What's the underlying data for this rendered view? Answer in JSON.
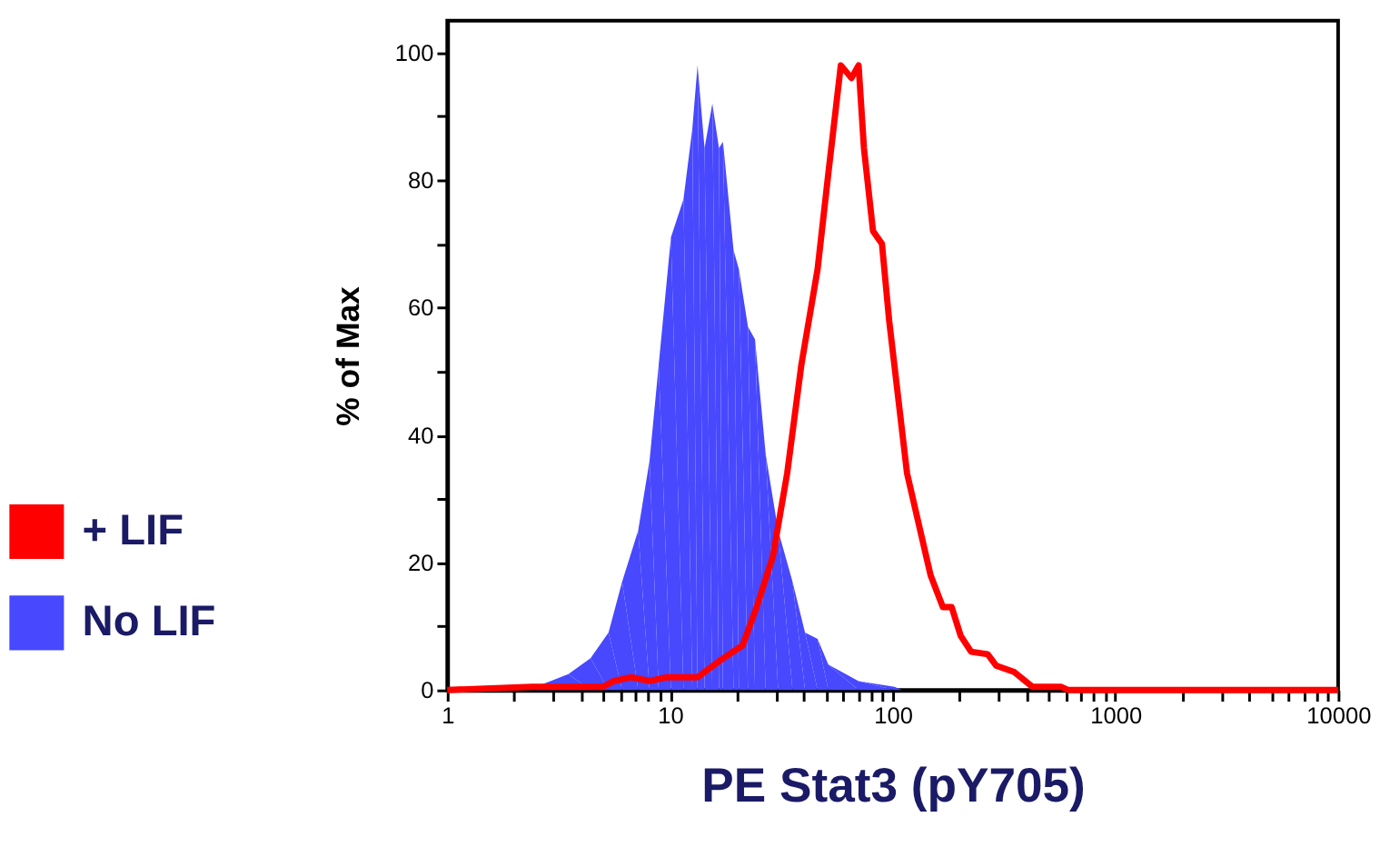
{
  "chart_data": {
    "type": "area",
    "xlabel": "PE Stat3 (pY705)",
    "ylabel": "% of Max",
    "log": "x",
    "xlim": [
      1,
      10000
    ],
    "ylim": [
      0,
      105
    ],
    "xticks": [
      1,
      {
        "value": 2,
        "label": null
      },
      {
        "value": 3,
        "label": null
      },
      {
        "value": 4,
        "label": null
      },
      {
        "value": 5,
        "label": null
      },
      {
        "value": 6,
        "label": null
      },
      {
        "value": 7,
        "label": null
      },
      {
        "value": 8,
        "label": null
      },
      {
        "value": 9,
        "label": null
      },
      10,
      {
        "value": 20,
        "label": null
      },
      {
        "value": 30,
        "label": null
      },
      {
        "value": 40,
        "label": null
      },
      {
        "value": 50,
        "label": null
      },
      {
        "value": 60,
        "label": null
      },
      {
        "value": 70,
        "label": null
      },
      {
        "value": 80,
        "label": null
      },
      {
        "value": 90,
        "label": null
      },
      100,
      {
        "value": 200,
        "label": null
      },
      {
        "value": 300,
        "label": null
      },
      {
        "value": 400,
        "label": null
      },
      {
        "value": 500,
        "label": null
      },
      {
        "value": 600,
        "label": null
      },
      {
        "value": 700,
        "label": null
      },
      {
        "value": 800,
        "label": null
      },
      {
        "value": 900,
        "label": null
      },
      1000,
      {
        "value": 2000,
        "label": null
      },
      {
        "value": 3000,
        "label": null
      },
      {
        "value": 4000,
        "label": null
      },
      {
        "value": 5000,
        "label": null
      },
      {
        "value": 6000,
        "label": null
      },
      {
        "value": 7000,
        "label": null
      },
      {
        "value": 8000,
        "label": null
      },
      {
        "value": 9000,
        "label": null
      },
      10000
    ],
    "yticks": [
      0,
      {
        "value": 10,
        "label": null
      },
      20,
      {
        "value": 30,
        "label": null
      },
      40,
      {
        "value": 50,
        "label": null
      },
      60,
      {
        "value": 70,
        "label": null
      },
      80,
      {
        "value": 90,
        "label": null
      },
      100
    ],
    "grid": false,
    "legend": "left",
    "series": [
      {
        "name": "+ LIF",
        "type": "line",
        "color": "#ff0000",
        "x": [
          1,
          2.4,
          5.0,
          5.6,
          6.7,
          8.1,
          9.7,
          13.3,
          16.9,
          21.2,
          24.5,
          29,
          33.6,
          38.9,
          46,
          51.4,
          58.5,
          65.3,
          70.3,
          74.3,
          81.6,
          89.5,
          96.4,
          116,
          129,
          148,
          168,
          184,
          202,
          225,
          267,
          292,
          352,
          424,
          569,
          612,
          10000
        ],
        "values": [
          0,
          0.5,
          0.5,
          1.4,
          2,
          1.4,
          2,
          2,
          4.7,
          7,
          13,
          21,
          34,
          51,
          66,
          81,
          98,
          96,
          98,
          85,
          72,
          70,
          58,
          34,
          27,
          18,
          13,
          13,
          8.5,
          6,
          5.6,
          3.8,
          2.8,
          0.5,
          0.5,
          0,
          0
        ]
      },
      {
        "name": "No LIF",
        "type": "area",
        "color": "#4848ff",
        "x": [
          2.5,
          3.5,
          4.4,
          5.3,
          6.1,
          7.2,
          8.1,
          8.9,
          10.1,
          11.5,
          12.6,
          13.3,
          14.3,
          15.5,
          16.6,
          17.3,
          19.3,
          20.4,
          22.4,
          24.1,
          26.9,
          30.6,
          35.5,
          40.4,
          46,
          51.4,
          70.3,
          102,
          110
        ],
        "values": [
          0.5,
          2.5,
          5,
          9,
          17,
          25,
          36,
          51,
          71,
          77,
          88,
          98,
          85,
          92,
          85,
          86,
          69,
          66,
          57,
          55,
          37,
          25,
          17,
          9,
          8,
          4,
          1.4,
          0.5,
          0
        ]
      }
    ]
  }
}
